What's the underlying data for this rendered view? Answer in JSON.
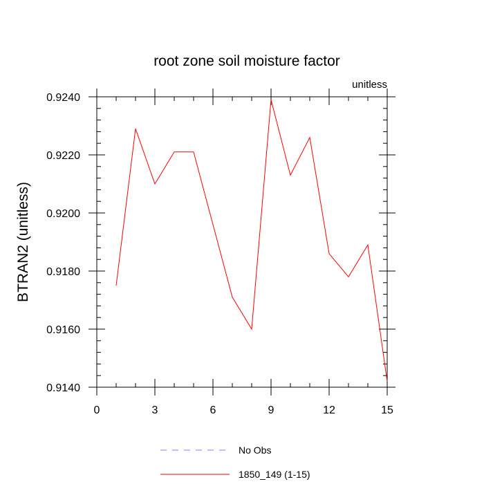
{
  "chart_data": {
    "type": "line",
    "title": "root zone soil moisture factor",
    "units_label": "unitless",
    "xlabel": "",
    "ylabel": "BTRAN2  (unitless)",
    "xlim": [
      0,
      15
    ],
    "ylim": [
      0.914,
      0.924
    ],
    "x_ticks": [
      0,
      3,
      6,
      9,
      12,
      15
    ],
    "x_tick_labels": [
      "0",
      "3",
      "6",
      "9",
      "12",
      "15"
    ],
    "y_ticks": [
      0.914,
      0.916,
      0.918,
      0.92,
      0.922,
      0.924
    ],
    "y_tick_labels": [
      "0.9140",
      "0.9160",
      "0.9180",
      "0.9200",
      "0.9220",
      "0.9240"
    ],
    "grid": false,
    "legend_position": "bottom-center",
    "legend": [
      {
        "name": "No Obs",
        "color": "#8080ff",
        "dash": "dashed"
      },
      {
        "name": "1850_149 (1-15)",
        "color": "#ff0000",
        "dash": "solid"
      }
    ],
    "series": [
      {
        "name": "1850_149 (1-15)",
        "color": "#ff0000",
        "x": [
          1,
          2,
          3,
          4,
          5,
          6,
          7,
          8,
          9,
          10,
          11,
          12,
          13,
          14,
          15
        ],
        "values": [
          0.9175,
          0.9229,
          0.921,
          0.9221,
          0.9221,
          0.9196,
          0.9171,
          0.916,
          0.9239,
          0.9213,
          0.9226,
          0.9186,
          0.9178,
          0.9189,
          0.9142
        ]
      }
    ]
  }
}
